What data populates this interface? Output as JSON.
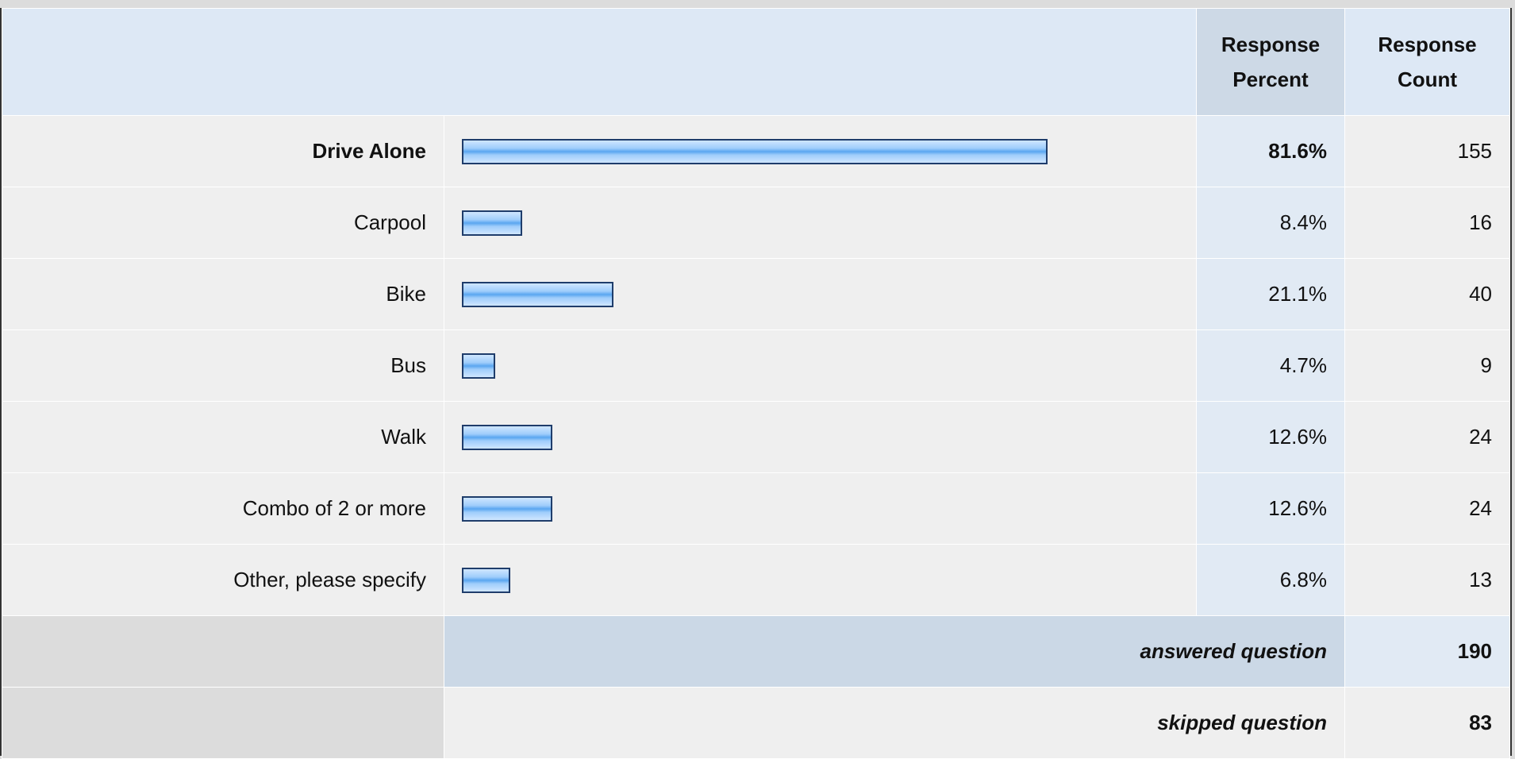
{
  "table": {
    "columns": [
      "Response Percent",
      "Response Count"
    ],
    "rows": [
      {
        "label": "Drive Alone",
        "percent": {
          "value": 81.6,
          "label": "81.6%"
        },
        "count": 155
      },
      {
        "label": "Carpool",
        "percent": {
          "value": 8.4,
          "label": "8.4%"
        },
        "count": 16
      },
      {
        "label": "Bike",
        "percent": {
          "value": 21.1,
          "label": "21.1%"
        },
        "count": 40
      },
      {
        "label": "Bus",
        "percent": {
          "value": 4.7,
          "label": "4.7%"
        },
        "count": 9
      },
      {
        "label": "Walk",
        "percent": {
          "value": 12.6,
          "label": "12.6%"
        },
        "count": 24
      },
      {
        "label": "Combo of 2 or more",
        "percent": {
          "value": 12.6,
          "label": "12.6%"
        },
        "count": 24
      },
      {
        "label": "Other, please specify",
        "percent": {
          "value": 6.8,
          "label": "6.8%"
        },
        "count": 13
      }
    ],
    "answered": {
      "label": "answered question",
      "value": 190
    },
    "skipped": {
      "label": "skipped question",
      "value": 83
    }
  }
}
